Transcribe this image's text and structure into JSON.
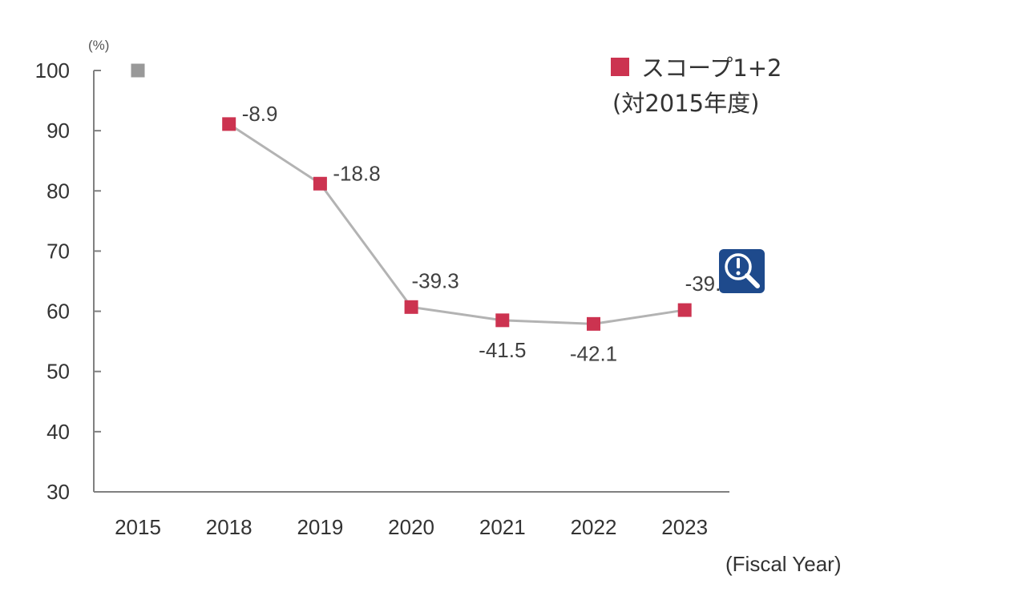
{
  "chart_data": {
    "type": "line",
    "unit_label": "(%)",
    "xlabel": "(Fiscal Year)",
    "ylim": [
      30,
      100
    ],
    "yticks": [
      100,
      90,
      80,
      70,
      60,
      50,
      40,
      30
    ],
    "categories": [
      "2015",
      "2018",
      "2019",
      "2020",
      "2021",
      "2022",
      "2023"
    ],
    "baseline": {
      "category": "2015",
      "value": 100,
      "color": "#999999"
    },
    "series": [
      {
        "name": "スコープ1+2",
        "color": "#cc3350",
        "line_color": "#b3b3b3",
        "x": [
          "2018",
          "2019",
          "2020",
          "2021",
          "2022",
          "2023"
        ],
        "values": [
          91.1,
          81.2,
          60.7,
          58.5,
          57.9,
          60.2
        ],
        "data_labels": [
          "-8.9",
          "-18.8",
          "-39.3",
          "-41.5",
          "-42.1",
          "-39.8"
        ]
      }
    ],
    "legend": {
      "position": "top-right",
      "line1": "スコープ1+2",
      "line2": "(対2015年度)"
    },
    "grid": false
  },
  "zoom_button": {
    "icon": "zoom-alert-icon",
    "color": "#1e4a8c"
  }
}
